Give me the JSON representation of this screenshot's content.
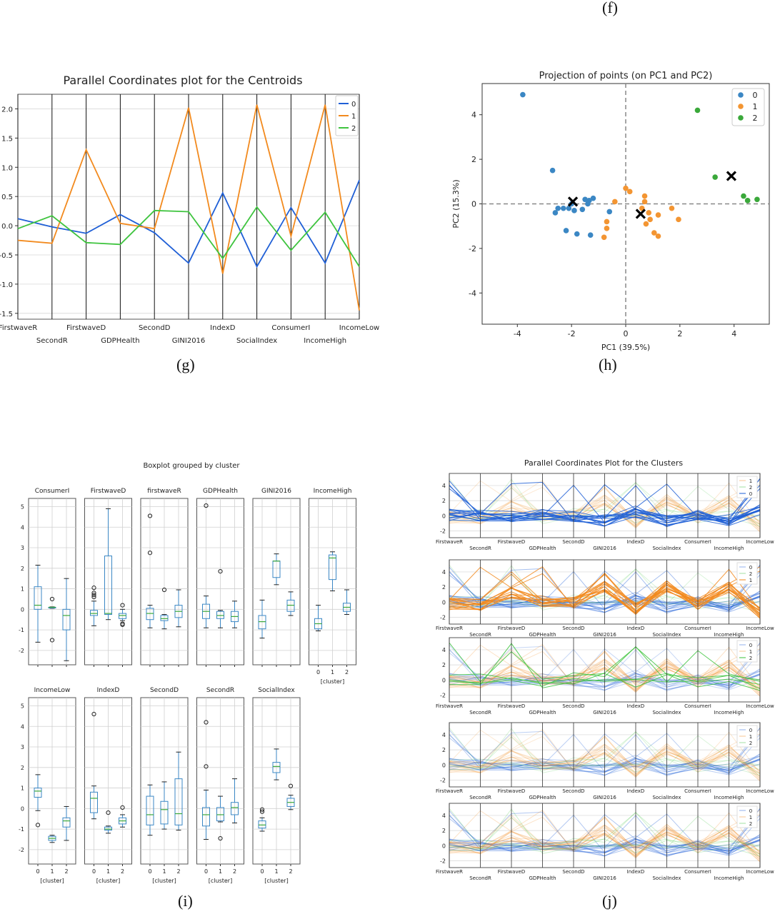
{
  "captions": {
    "f": "(f)",
    "g": "(g)",
    "h": "(h)",
    "i": "(i)",
    "j": "(j)"
  },
  "colors": {
    "c0": "#1f5fd6",
    "c1": "#f28a1e",
    "c2": "#3fc43f",
    "s0": "#3b87c4",
    "s1": "#f39532",
    "s2": "#3aa83a"
  },
  "chart_data": [
    {
      "id": "g",
      "type": "line",
      "title": "Parallel Coordinates plot for the Centroids",
      "categories": [
        "FirstwaveR",
        "SecondR",
        "FirstwaveD",
        "GDPHealth",
        "SecondD",
        "GINI2016",
        "IndexD",
        "SocialIndex",
        "ConsumerI",
        "IncomeHigh",
        "IncomeLow"
      ],
      "ylim": [
        -1.6,
        2.25
      ],
      "yticks": [
        "2.0",
        "1.5",
        "1.0",
        "0.5",
        "0.0",
        "-0.5",
        "-1.0",
        "-1.5"
      ],
      "ytick_values": [
        2.0,
        1.5,
        1.0,
        0.5,
        0.0,
        -0.5,
        -1.0,
        -1.5
      ],
      "legend": "top-right",
      "series": [
        {
          "name": "0",
          "values": [
            0.12,
            -0.02,
            -0.13,
            0.19,
            -0.12,
            -0.64,
            0.56,
            -0.7,
            0.31,
            -0.64,
            0.78
          ]
        },
        {
          "name": "1",
          "values": [
            -0.25,
            -0.3,
            1.3,
            0.04,
            -0.05,
            2.02,
            -0.82,
            2.07,
            -0.18,
            2.07,
            -1.45
          ]
        },
        {
          "name": "2",
          "values": [
            -0.05,
            0.17,
            -0.29,
            -0.32,
            0.26,
            0.24,
            -0.56,
            0.32,
            -0.42,
            0.23,
            -0.7
          ]
        }
      ]
    },
    {
      "id": "h",
      "type": "scatter",
      "title": "Projection of points (on PC1 and PC2)",
      "xlabel": "PC1 (39.5%)",
      "ylabel": "PC2 (15.3%)",
      "xlim": [
        -5.3,
        5.3
      ],
      "ylim": [
        -5.4,
        5.4
      ],
      "xticks": [
        "-4",
        "-2",
        "0",
        "2",
        "4"
      ],
      "xtick_values": [
        -4,
        -2,
        0,
        2,
        4
      ],
      "yticks": [
        "4",
        "2",
        "0",
        "-2",
        "-4"
      ],
      "ytick_values": [
        4,
        2,
        0,
        -2,
        -4
      ],
      "legend": "top-right",
      "series": [
        {
          "name": "0",
          "points": [
            [
              -3.8,
              4.9
            ],
            [
              -2.7,
              1.5
            ],
            [
              -2.6,
              -0.4
            ],
            [
              -2.5,
              -0.2
            ],
            [
              -2.3,
              -0.2
            ],
            [
              -2.2,
              -1.2
            ],
            [
              -2.0,
              0.0
            ],
            [
              -1.9,
              -0.3
            ],
            [
              -1.8,
              -1.35
            ],
            [
              -1.6,
              -0.25
            ],
            [
              -1.5,
              0.2
            ],
            [
              -1.4,
              0.0
            ],
            [
              -1.35,
              0.15
            ],
            [
              -1.3,
              -1.4
            ],
            [
              -1.2,
              0.25
            ],
            [
              -0.6,
              -0.35
            ],
            [
              -2.1,
              -0.2
            ]
          ]
        },
        {
          "name": "1",
          "points": [
            [
              -0.8,
              -1.5
            ],
            [
              -0.7,
              -0.8
            ],
            [
              -0.7,
              -1.1
            ],
            [
              -0.4,
              0.1
            ],
            [
              0.0,
              0.7
            ],
            [
              0.15,
              0.55
            ],
            [
              0.6,
              -0.2
            ],
            [
              0.7,
              0.1
            ],
            [
              0.7,
              0.35
            ],
            [
              0.75,
              -0.9
            ],
            [
              0.85,
              -0.4
            ],
            [
              0.9,
              -0.7
            ],
            [
              1.05,
              -1.3
            ],
            [
              1.2,
              -0.5
            ],
            [
              1.2,
              -1.45
            ],
            [
              1.7,
              -0.2
            ],
            [
              1.95,
              -0.7
            ]
          ]
        },
        {
          "name": "2",
          "points": [
            [
              2.65,
              4.2
            ],
            [
              3.3,
              1.2
            ],
            [
              4.35,
              0.35
            ],
            [
              4.5,
              0.15
            ],
            [
              4.85,
              0.2
            ]
          ]
        }
      ],
      "centroids": [
        [
          -1.95,
          0.1
        ],
        [
          0.55,
          -0.45
        ],
        [
          3.9,
          1.25
        ]
      ]
    },
    {
      "id": "i",
      "type": "box",
      "title": "Boxplot grouped by cluster",
      "xlabel": "[cluster]",
      "categories": [
        "0",
        "1",
        "2"
      ],
      "ylim": [
        -2.7,
        5.4
      ],
      "yticks": [
        "5",
        "4",
        "3",
        "2",
        "1",
        "0",
        "-1",
        "-2"
      ],
      "ytick_values": [
        5,
        4,
        3,
        2,
        1,
        0,
        -1,
        -2
      ],
      "panels": [
        {
          "name": "ConsumerI",
          "boxes": [
            [
              -1.6,
              0.0,
              0.2,
              1.1,
              2.15
            ],
            [
              0.05,
              0.08,
              0.1,
              0.1,
              0.12
            ],
            [
              -2.5,
              -1.0,
              -0.3,
              0.0,
              1.5
            ]
          ],
          "fliers": [
            [],
            [
              0.5,
              -1.5
            ],
            []
          ]
        },
        {
          "name": "FirstwaveD",
          "boxes": [
            [
              -0.8,
              -0.3,
              -0.2,
              -0.05,
              0.4
            ],
            [
              -0.5,
              -0.25,
              -0.2,
              2.6,
              4.9
            ],
            [
              -0.55,
              -0.45,
              -0.3,
              -0.2,
              0.0
            ]
          ],
          "fliers": [
            [
              0.6,
              0.7,
              0.8,
              1.05
            ],
            [],
            [
              0.2,
              -0.7,
              -0.75
            ]
          ]
        },
        {
          "name": "firstwaveR",
          "boxes": [
            [
              -0.9,
              -0.5,
              -0.2,
              0.05,
              0.2
            ],
            [
              -0.95,
              -0.55,
              -0.45,
              -0.3,
              -0.25
            ],
            [
              -0.85,
              -0.4,
              -0.1,
              0.2,
              0.95
            ]
          ],
          "fliers": [
            [
              4.55,
              2.75
            ],
            [
              0.95
            ],
            []
          ]
        },
        {
          "name": "GDPHealth",
          "boxes": [
            [
              -0.9,
              -0.45,
              -0.1,
              0.25,
              0.65
            ],
            [
              -0.9,
              -0.45,
              -0.3,
              -0.1,
              -0.05
            ],
            [
              -0.9,
              -0.6,
              -0.35,
              -0.1,
              0.4
            ]
          ],
          "fliers": [
            [
              5.05
            ],
            [
              1.85
            ],
            []
          ]
        },
        {
          "name": "GINI2016",
          "boxes": [
            [
              -1.4,
              -0.95,
              -0.6,
              -0.3,
              0.45
            ],
            [
              1.2,
              1.55,
              2.35,
              2.35,
              2.7
            ],
            [
              -0.3,
              -0.1,
              0.2,
              0.45,
              0.85
            ]
          ],
          "fliers": [
            [],
            [],
            []
          ]
        },
        {
          "name": "IncomeHigh",
          "boxes": [
            [
              -1.05,
              -0.95,
              -0.7,
              -0.45,
              0.2
            ],
            [
              0.9,
              1.45,
              2.5,
              2.65,
              2.8
            ],
            [
              -0.25,
              -0.1,
              0.1,
              0.3,
              0.95
            ]
          ],
          "fliers": [
            [],
            [],
            []
          ]
        },
        {
          "name": "IncomeLow",
          "boxes": [
            [
              -0.1,
              0.55,
              0.85,
              1.0,
              1.65
            ],
            [
              -1.65,
              -1.55,
              -1.45,
              -1.35,
              -1.3
            ],
            [
              -1.55,
              -0.9,
              -0.6,
              -0.45,
              0.1
            ]
          ],
          "fliers": [
            [
              -0.8
            ],
            [],
            []
          ]
        },
        {
          "name": "IndexD",
          "boxes": [
            [
              -0.5,
              -0.2,
              0.5,
              0.8,
              1.1
            ],
            [
              -1.2,
              -1.05,
              -1.0,
              -0.9,
              -0.85
            ],
            [
              -0.9,
              -0.75,
              -0.6,
              -0.45,
              -0.3
            ]
          ],
          "fliers": [
            [
              4.6
            ],
            [
              -0.2
            ],
            [
              0.05
            ]
          ]
        },
        {
          "name": "SecondD",
          "boxes": [
            [
              -1.3,
              -0.8,
              -0.3,
              0.6,
              1.15
            ],
            [
              -1.0,
              -0.75,
              -0.05,
              0.35,
              1.3
            ],
            [
              -1.05,
              -0.8,
              -0.25,
              1.45,
              2.75
            ]
          ],
          "fliers": [
            [],
            [],
            []
          ]
        },
        {
          "name": "SecondR",
          "boxes": [
            [
              -1.5,
              -0.85,
              -0.3,
              0.05,
              0.9
            ],
            [
              -0.65,
              -0.6,
              -0.3,
              0.05,
              0.6
            ],
            [
              -0.7,
              -0.3,
              0.05,
              0.3,
              1.45
            ]
          ],
          "fliers": [
            [
              4.2,
              2.05
            ],
            [
              -1.45
            ],
            []
          ]
        },
        {
          "name": "SocialIndex",
          "boxes": [
            [
              -1.1,
              -0.95,
              -0.8,
              -0.6,
              -0.45
            ],
            [
              1.4,
              1.75,
              2.05,
              2.25,
              2.9
            ],
            [
              -0.05,
              0.1,
              0.3,
              0.5,
              0.65
            ]
          ],
          "fliers": [
            [
              -0.05,
              -0.15
            ],
            [],
            [
              1.1
            ]
          ]
        }
      ]
    },
    {
      "id": "j",
      "type": "line",
      "title": "Parallel Coordinates Plot for the Clusters",
      "categories": [
        "FirstwaveR",
        "SecondR",
        "FirstwaveD",
        "GDPHealth",
        "SecondD",
        "GINI2016",
        "IndexD",
        "SocialIndex",
        "ConsumerI",
        "IncomeHigh",
        "IncomeLow"
      ],
      "ylim": [
        -2.9,
        5.6
      ],
      "yticks": [
        "4",
        "2",
        "0",
        "-2"
      ],
      "ytick_values": [
        4,
        2,
        0,
        -2
      ],
      "centroid_profiles": {
        "0": [
          0.12,
          -0.02,
          -0.13,
          0.19,
          -0.12,
          -0.64,
          0.56,
          -0.7,
          0.31,
          -0.64,
          0.78
        ],
        "1": [
          -0.25,
          -0.3,
          1.3,
          0.04,
          -0.05,
          2.02,
          -0.82,
          2.07,
          -0.18,
          2.07,
          -1.45
        ],
        "2": [
          -0.05,
          0.17,
          -0.29,
          -0.32,
          0.26,
          0.24,
          -0.56,
          0.32,
          -0.42,
          0.23,
          -0.7
        ]
      },
      "subplots": [
        {
          "legend": [
            "1",
            "2",
            "0"
          ],
          "order": [
            "1",
            "2",
            "0"
          ],
          "alpha": {
            "0": 0.85,
            "1": 0.2,
            "2": 0.2
          }
        },
        {
          "legend": [
            "0",
            "2",
            "1"
          ],
          "order": [
            "0",
            "2",
            "1"
          ],
          "alpha": {
            "0": 0.4,
            "1": 0.85,
            "2": 0.2
          }
        },
        {
          "legend": [
            "0",
            "1",
            "2"
          ],
          "order": [
            "0",
            "1",
            "2"
          ],
          "alpha": {
            "0": 0.25,
            "1": 0.25,
            "2": 0.85
          }
        },
        {
          "legend": [
            "0",
            "1",
            "2"
          ],
          "order": [
            "0",
            "1",
            "2"
          ],
          "alpha": {
            "0": 0.3,
            "1": 0.2,
            "2": 0.2
          }
        },
        {
          "legend": [
            "0",
            "1",
            "2"
          ],
          "order": [
            "0",
            "1",
            "2"
          ],
          "alpha": {
            "0": 0.35,
            "1": 0.25,
            "2": 0.25
          }
        }
      ]
    }
  ]
}
